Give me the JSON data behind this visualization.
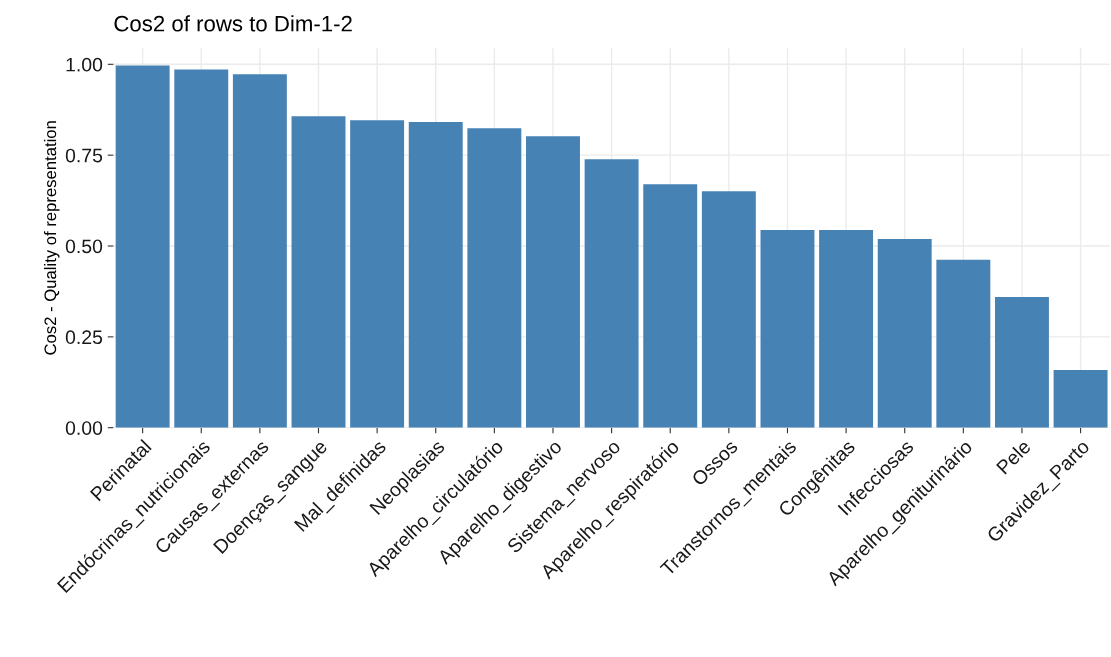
{
  "chart_data": {
    "type": "bar",
    "title": "Cos2 of rows to Dim-1-2",
    "ylabel": "Cos2 - Quality of representation",
    "categories": [
      "Perinatal",
      "Endócrinas_nutricionais",
      "Causas_externas",
      "Doenças_sangue",
      "Mal_definidas",
      "Neoplasias",
      "Aparelho_circulatório",
      "Aparelho_digestivo",
      "Sistema_nervoso",
      "Aparelho_respiratório",
      "Ossos",
      "Transtornos_mentais",
      "Congênitas",
      "Infecciosas",
      "Aparelho_geniturinário",
      "Pele",
      "Gravidez_Parto"
    ],
    "values": [
      0.997,
      0.986,
      0.973,
      0.857,
      0.846,
      0.841,
      0.824,
      0.802,
      0.739,
      0.67,
      0.651,
      0.544,
      0.544,
      0.519,
      0.462,
      0.36,
      0.159
    ],
    "color": "#4682b4",
    "ylim": [
      0,
      1.045
    ],
    "yticks": [
      {
        "value": 0,
        "label": "0.00"
      },
      {
        "value": 0.25,
        "label": "0.25"
      },
      {
        "value": 0.5,
        "label": "0.50"
      },
      {
        "value": 0.75,
        "label": "0.75"
      },
      {
        "value": 1,
        "label": "1.00"
      }
    ],
    "grid": true
  }
}
